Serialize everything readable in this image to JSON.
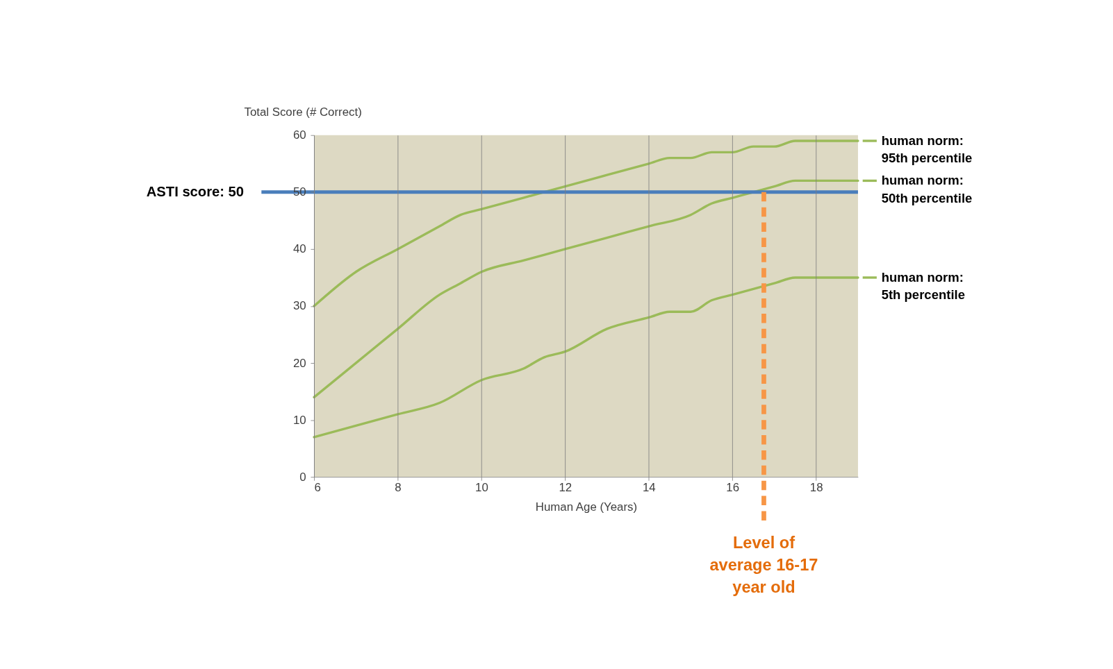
{
  "chart_data": {
    "type": "line",
    "xlabel": "Human Age (Years)",
    "ylabel": "Total Score (# Correct)",
    "xlim": [
      6,
      19
    ],
    "xticks": [
      6,
      8,
      10,
      12,
      14,
      16,
      18
    ],
    "ylim": [
      0,
      60
    ],
    "yticks": [
      0,
      10,
      20,
      30,
      40,
      50,
      60
    ],
    "grid": "x",
    "legend": "right",
    "series": [
      {
        "name": "human norm: 95th percentile",
        "color": "#9bbb59",
        "x": [
          6,
          7,
          8,
          9,
          9.5,
          10,
          11,
          12,
          13,
          14,
          14.5,
          15,
          15.5,
          16,
          16.5,
          17,
          17.5,
          18,
          19
        ],
        "values": [
          30,
          36,
          40,
          44,
          46,
          47,
          49,
          51,
          53,
          55,
          56,
          56,
          57,
          57,
          58,
          58,
          59,
          59,
          59
        ]
      },
      {
        "name": "human norm: 50th percentile",
        "color": "#9bbb59",
        "x": [
          6,
          7,
          8,
          9,
          9.5,
          10,
          11,
          12,
          13,
          14,
          15,
          15.5,
          16,
          16.5,
          17,
          17.5,
          18,
          19
        ],
        "values": [
          14,
          20,
          26,
          32,
          34,
          36,
          38,
          40,
          42,
          44,
          46,
          48,
          49,
          50,
          51,
          52,
          52,
          52
        ]
      },
      {
        "name": "human norm: 5th percentile",
        "color": "#9bbb59",
        "x": [
          6,
          7,
          8,
          9,
          10,
          11,
          11.5,
          12,
          13,
          14,
          14.5,
          15,
          15.5,
          16,
          17,
          17.5,
          18,
          19
        ],
        "values": [
          7,
          9,
          11,
          13,
          17,
          19,
          21,
          22,
          26,
          28,
          29,
          29,
          31,
          32,
          34,
          35,
          35,
          35
        ]
      }
    ],
    "ref_lines": [
      {
        "axis": "y",
        "value": 50,
        "label": "ASTI score: 50",
        "color": "#4a7ebb"
      },
      {
        "axis": "x",
        "value": 16.75,
        "label": "Level of average 16-17 year old",
        "color": "#f79646",
        "line_style": "dashed"
      }
    ]
  }
}
